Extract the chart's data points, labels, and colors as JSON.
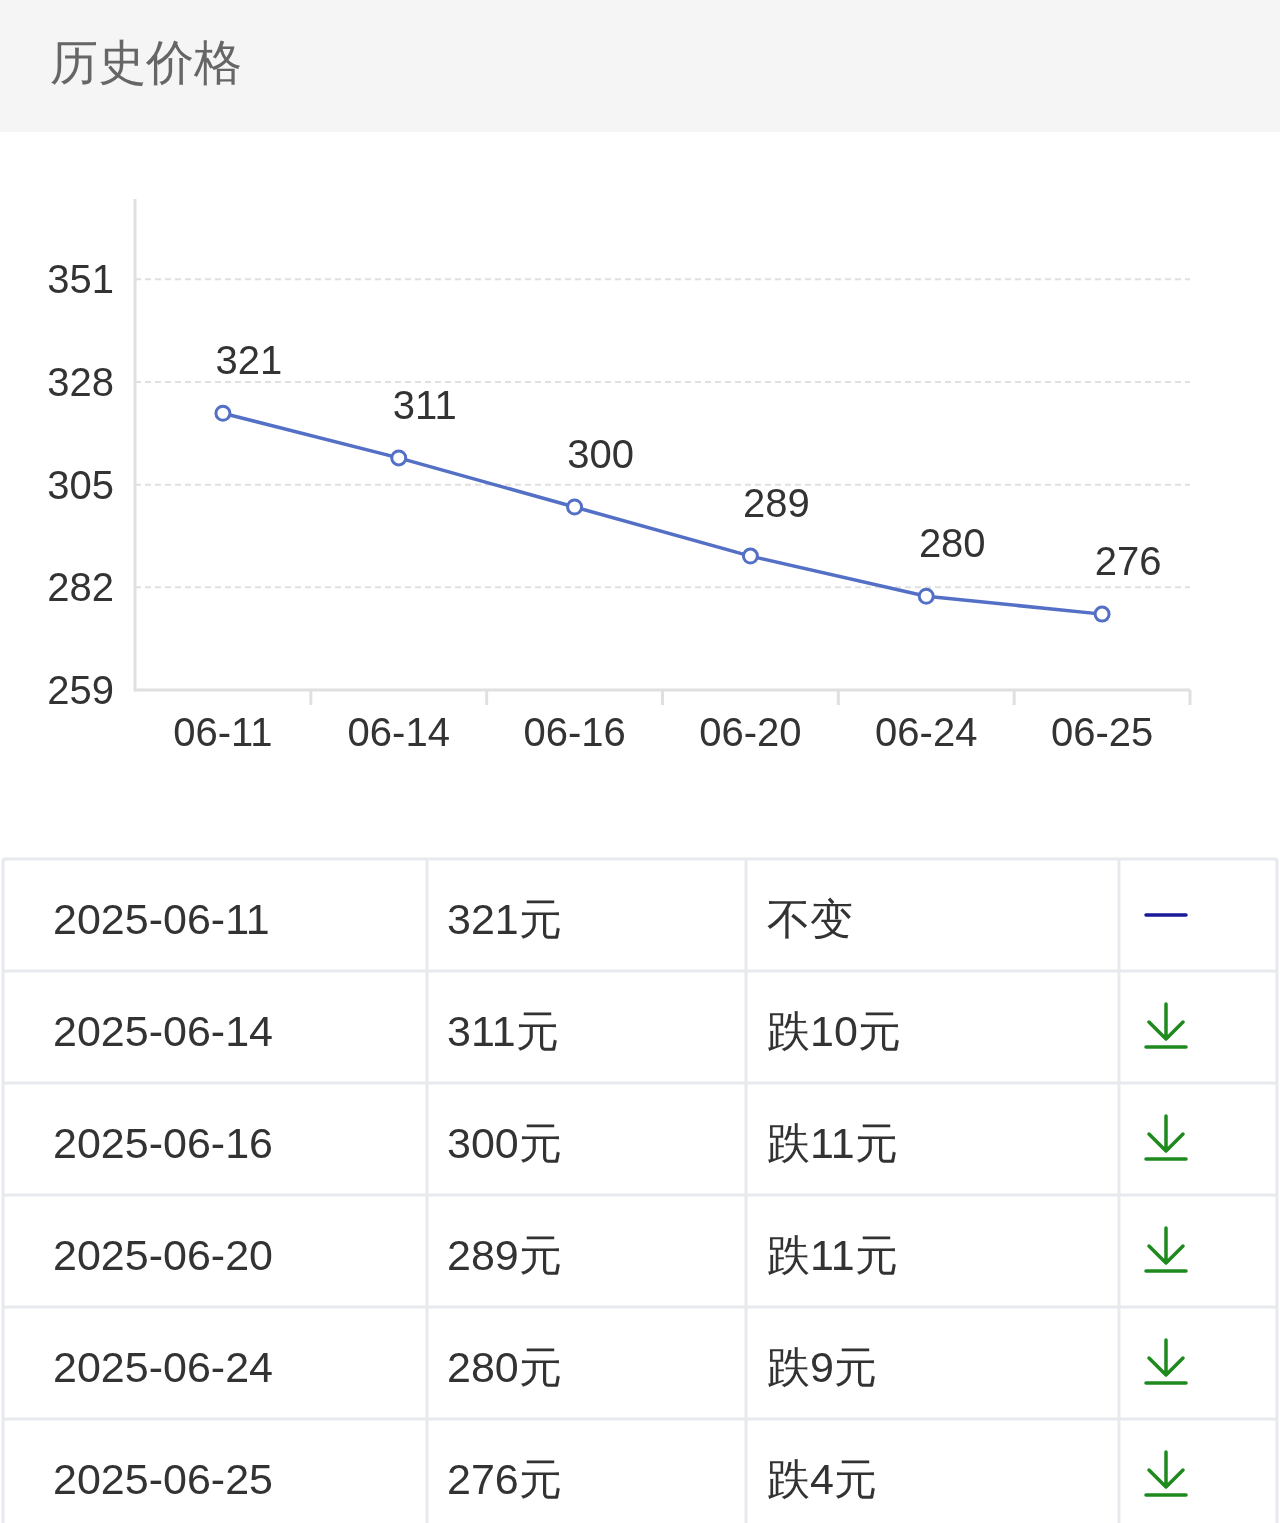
{
  "chart_data": [
    {
      "type": "line",
      "title": "历史价格",
      "categories": [
        "06-11",
        "06-14",
        "06-16",
        "06-20",
        "06-24",
        "06-25"
      ],
      "values": [
        321,
        311,
        300,
        289,
        280,
        276
      ],
      "color": "#5470c6",
      "ylim": [
        259,
        369
      ],
      "yticks": [
        259,
        282,
        305,
        328,
        351
      ],
      "grid": "y",
      "marker": "circle",
      "data_labels": true
    },
    {
      "type": "other",
      "categories": [
        "2025-06-11",
        "2025-06-14",
        "2025-06-16",
        "2025-06-20",
        "2025-06-24",
        "2025-06-25"
      ],
      "values": [
        321,
        311,
        300,
        289,
        280,
        276
      ],
      "value_labels": [
        "321元",
        "311元",
        "300元",
        "289元",
        "280元",
        "276元"
      ],
      "annotations": [
        "不变",
        "跌10元",
        "跌11元",
        "跌11元",
        "跌9元",
        "跌4元"
      ]
    }
  ]
}
